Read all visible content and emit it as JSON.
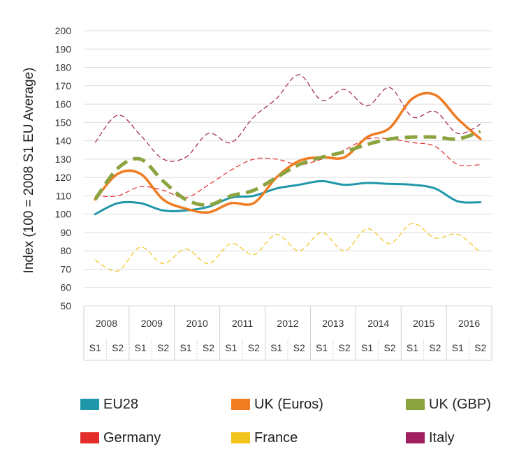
{
  "chart_data": {
    "type": "line",
    "ylabel": "Index (100 = 2008 S1 EU Average)",
    "ylim": [
      50,
      200
    ],
    "yticks": [
      50,
      60,
      70,
      80,
      90,
      100,
      110,
      120,
      130,
      140,
      150,
      160,
      170,
      180,
      190,
      200
    ],
    "grid": true,
    "years": [
      "2008",
      "2009",
      "2010",
      "2011",
      "2012",
      "2013",
      "2014",
      "2015",
      "2016"
    ],
    "semesters": [
      "S1",
      "S2"
    ],
    "x": [
      "2008 S1",
      "2008 S2",
      "2009 S1",
      "2009 S2",
      "2010 S1",
      "2010 S2",
      "2011 S1",
      "2011 S2",
      "2012 S1",
      "2012 S2",
      "2013 S1",
      "2013 S2",
      "2014 S1",
      "2014 S2",
      "2015 S1",
      "2015 S2",
      "2016 S1",
      "2016 S2"
    ],
    "legend_position": "bottom",
    "series": [
      {
        "name": "EU28",
        "color": "#1f97a8",
        "style": "solid",
        "width": 3,
        "values": [
          100,
          106,
          106,
          102,
          102,
          104,
          109,
          110,
          114,
          116,
          118,
          116,
          117,
          116.5,
          116,
          114,
          107,
          106.5
        ]
      },
      {
        "name": "UK (Euros)",
        "color": "#f07c22",
        "style": "solid",
        "width": 3.5,
        "values": [
          108,
          122,
          122,
          108,
          103,
          101,
          106,
          106,
          120,
          129,
          131,
          131,
          142,
          147,
          163,
          165,
          152,
          141
        ]
      },
      {
        "name": "UK (GBP)",
        "color": "#8ba43f",
        "style": "dashed",
        "width": 5,
        "values": [
          108,
          125,
          130,
          118,
          108,
          105,
          110,
          113,
          120,
          127,
          131,
          134,
          138,
          141,
          142,
          142,
          141,
          145
        ]
      },
      {
        "name": "Germany",
        "color": "#e22d2a",
        "style": "thin-dashed",
        "width": 1.2,
        "values": [
          110,
          110,
          115,
          113,
          109,
          116,
          124,
          130,
          130,
          127,
          130,
          135,
          141,
          141,
          139,
          137,
          127,
          127
        ]
      },
      {
        "name": "France",
        "color": "#f2c31a",
        "style": "thin-dashed",
        "width": 1.2,
        "values": [
          75,
          69,
          82,
          73,
          81,
          73,
          84,
          78,
          89,
          80,
          90,
          80,
          92,
          84,
          95,
          87,
          89,
          79
        ]
      },
      {
        "name": "Italy",
        "color": "#a01f5e",
        "style": "thin-dashed",
        "width": 1.2,
        "values": [
          139,
          154,
          143,
          130,
          131,
          144,
          139,
          153,
          163,
          176,
          162,
          168,
          159,
          169,
          153,
          156,
          144,
          149
        ]
      }
    ]
  }
}
